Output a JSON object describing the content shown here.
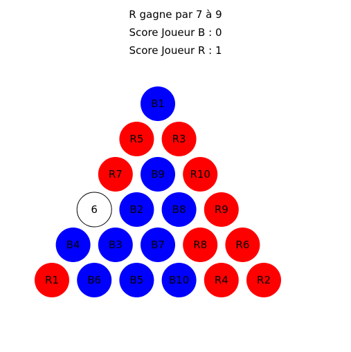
{
  "status": {
    "result": "R gagne par 7 à 9",
    "score_b": "Score Joueur B : 0",
    "score_r": "Score Joueur R : 1"
  },
  "colors": {
    "B": "#0000ff",
    "R": "#ff0000",
    "empty_fill": "#ffffff",
    "empty_stroke": "#000000"
  },
  "board": {
    "rows": [
      [
        {
          "owner": "B",
          "label": "B1"
        }
      ],
      [
        {
          "owner": "R",
          "label": "R5"
        },
        {
          "owner": "R",
          "label": "R3"
        }
      ],
      [
        {
          "owner": "R",
          "label": "R7"
        },
        {
          "owner": "B",
          "label": "B9"
        },
        {
          "owner": "R",
          "label": "R10"
        }
      ],
      [
        {
          "owner": "empty",
          "label": "6"
        },
        {
          "owner": "B",
          "label": "B2"
        },
        {
          "owner": "B",
          "label": "B8"
        },
        {
          "owner": "R",
          "label": "R9"
        }
      ],
      [
        {
          "owner": "B",
          "label": "B4"
        },
        {
          "owner": "B",
          "label": "B3"
        },
        {
          "owner": "B",
          "label": "B7"
        },
        {
          "owner": "R",
          "label": "R8"
        },
        {
          "owner": "R",
          "label": "R6"
        }
      ],
      [
        {
          "owner": "R",
          "label": "R1"
        },
        {
          "owner": "B",
          "label": "B6"
        },
        {
          "owner": "B",
          "label": "B5"
        },
        {
          "owner": "B",
          "label": "B10"
        },
        {
          "owner": "R",
          "label": "R4"
        },
        {
          "owner": "R",
          "label": "R2"
        }
      ]
    ]
  }
}
